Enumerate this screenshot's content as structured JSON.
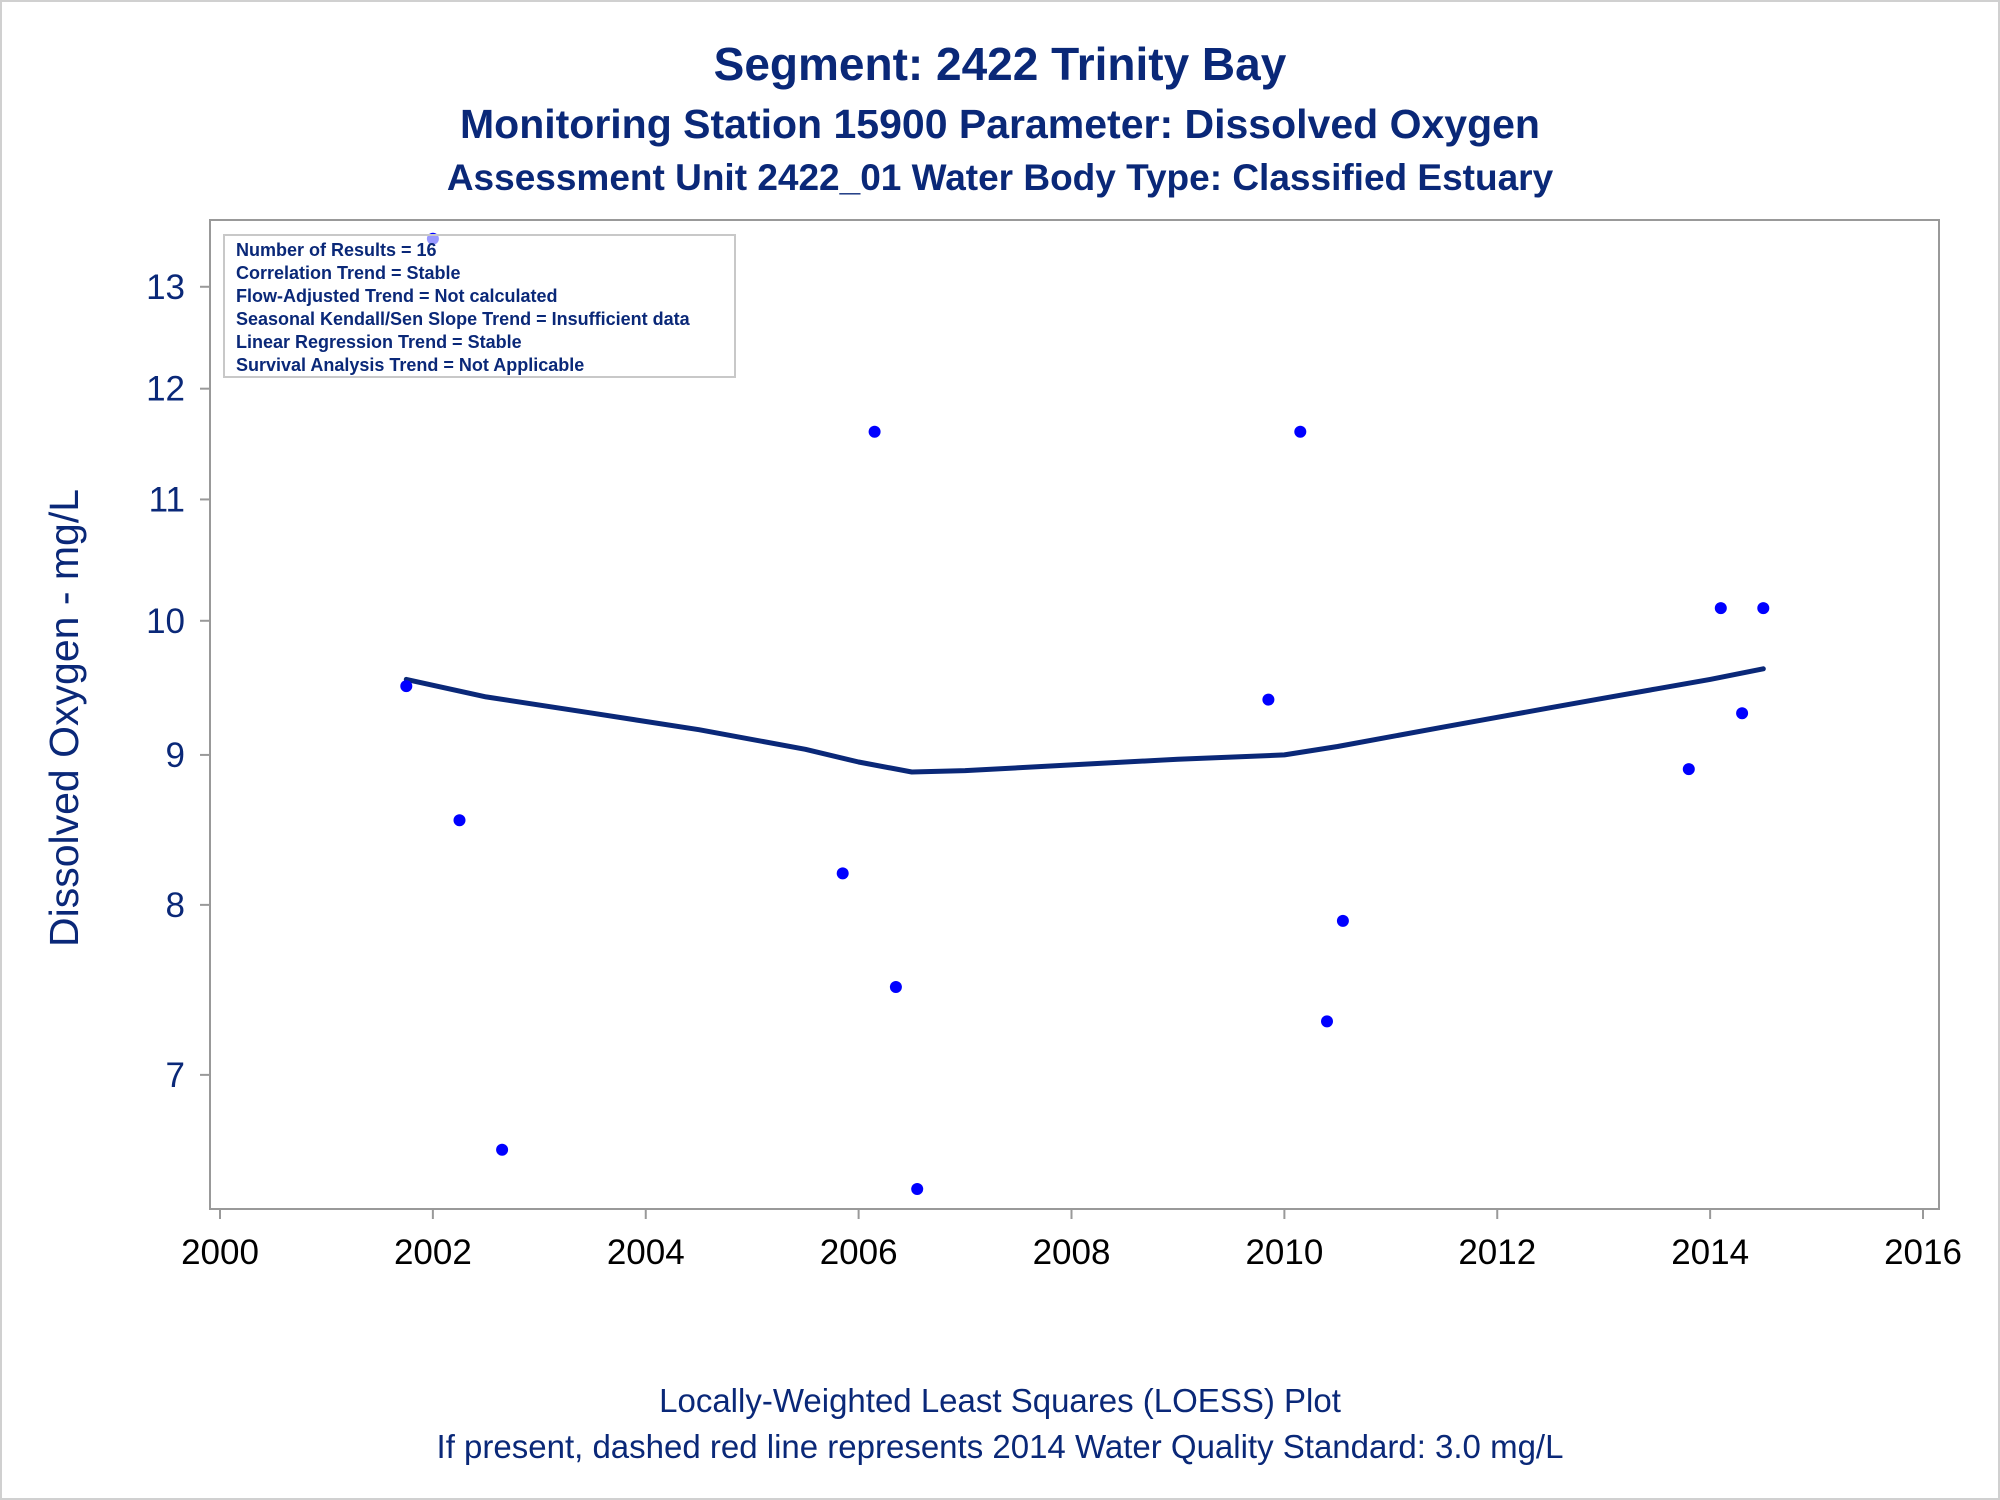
{
  "title": "Segment: 2422  Trinity Bay",
  "subtitle1": "Monitoring Station 15900 Parameter: Dissolved Oxygen",
  "subtitle2": "Assessment Unit 2422_01   Water Body Type: Classified Estuary",
  "inset_lines": [
    "Number of Results = 16",
    "Correlation Trend = Stable",
    "Flow-Adjusted Trend = Not calculated",
    "Seasonal Kendall/Sen Slope Trend = Insufficient data",
    "Linear Regression Trend = Stable",
    "Survival Analysis Trend = Not Applicable"
  ],
  "footnote1": "Locally-Weighted Least Squares (LOESS) Plot",
  "footnote2": "If present, dashed red line represents 2014 Water Quality Standard: 3.0 mg/L",
  "colors": {
    "text": "#0a2878",
    "points": "#0000ff",
    "loess": "#0a2878",
    "axis": "#999999"
  },
  "chart_data": {
    "type": "scatter",
    "xlabel": "",
    "ylabel": "Dissolved Oxygen - mg/L",
    "xlim": [
      2000,
      2016
    ],
    "ylim": [
      6.3,
      13.7
    ],
    "y_scale": "log",
    "x_ticks": [
      2000,
      2002,
      2004,
      2006,
      2008,
      2010,
      2012,
      2014,
      2016
    ],
    "y_ticks": [
      7,
      8,
      9,
      10,
      11,
      12,
      13
    ],
    "grid": false,
    "series": [
      {
        "kind": "points",
        "x": [
          2001.75,
          2002.0,
          2002.25,
          2002.65,
          2005.85,
          2006.15,
          2006.35,
          2006.55,
          2009.85,
          2010.15,
          2010.4,
          2010.55,
          2013.8,
          2014.1,
          2014.3,
          2014.5
        ],
        "y": [
          9.5,
          13.5,
          8.55,
          6.6,
          8.2,
          11.6,
          7.5,
          6.4,
          9.4,
          11.6,
          7.3,
          7.9,
          8.9,
          10.1,
          9.3,
          10.1
        ]
      },
      {
        "kind": "loess",
        "x": [
          2001.75,
          2002.5,
          2003.5,
          2004.5,
          2005.5,
          2006.0,
          2006.5,
          2007.0,
          2008.0,
          2009.0,
          2010.0,
          2010.5,
          2011.0,
          2011.5,
          2012.0,
          2012.5,
          2013.0,
          2013.5,
          2014.0,
          2014.5
        ],
        "y": [
          9.55,
          9.42,
          9.3,
          9.18,
          9.04,
          8.95,
          8.88,
          8.89,
          8.93,
          8.97,
          9.0,
          9.06,
          9.13,
          9.2,
          9.27,
          9.34,
          9.41,
          9.48,
          9.55,
          9.63
        ]
      }
    ]
  }
}
